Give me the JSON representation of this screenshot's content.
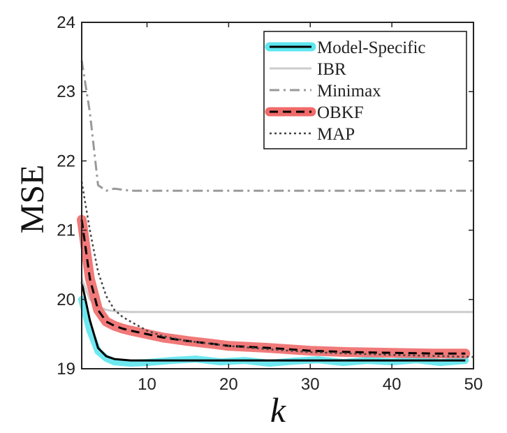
{
  "chart_data": {
    "type": "line",
    "xlabel": "k",
    "ylabel": "MSE",
    "xlim": [
      2,
      50
    ],
    "ylim": [
      19,
      24
    ],
    "xticks": [
      10,
      20,
      30,
      40,
      50
    ],
    "yticks": [
      19,
      20,
      21,
      22,
      23,
      24
    ],
    "x_tick_labels": [
      "10",
      "20",
      "30",
      "40",
      "50"
    ],
    "y_tick_labels": [
      "19",
      "20",
      "21",
      "22",
      "23",
      "24"
    ],
    "grid": false,
    "legend_position": "top-right",
    "series": [
      {
        "name": "Model-Specific",
        "color": "#000000",
        "band_color": "#5ee6ee",
        "x": [
          2,
          3,
          4,
          5,
          6,
          7,
          8,
          10,
          15,
          20,
          25,
          30,
          35,
          40,
          45,
          49
        ],
        "y": [
          20.25,
          19.7,
          19.3,
          19.18,
          19.14,
          19.13,
          19.12,
          19.12,
          19.12,
          19.12,
          19.12,
          19.12,
          19.12,
          19.12,
          19.12,
          19.12
        ],
        "band_x": [
          2,
          3,
          4,
          5,
          6,
          8,
          10,
          13,
          16,
          19,
          22,
          25,
          28,
          31,
          34,
          37,
          40,
          43,
          46,
          49
        ],
        "band_y": [
          20.0,
          19.55,
          19.25,
          19.15,
          19.1,
          19.08,
          19.09,
          19.12,
          19.14,
          19.1,
          19.12,
          19.08,
          19.11,
          19.13,
          19.09,
          19.12,
          19.1,
          19.13,
          19.09,
          19.12
        ]
      },
      {
        "name": "IBR",
        "color": "#cccccc",
        "x": [
          2,
          3,
          4,
          5,
          6,
          8,
          10,
          20,
          30,
          40,
          50
        ],
        "y": [
          20.3,
          20.0,
          19.9,
          19.85,
          19.83,
          19.82,
          19.82,
          19.82,
          19.82,
          19.82,
          19.82
        ]
      },
      {
        "name": "Minimax",
        "color": "#999999",
        "x": [
          2,
          3,
          4,
          5,
          6,
          8,
          10,
          20,
          30,
          40,
          50
        ],
        "y": [
          23.45,
          22.7,
          21.65,
          21.57,
          21.6,
          21.57,
          21.57,
          21.57,
          21.57,
          21.57,
          21.57
        ]
      },
      {
        "name": "OBKF",
        "color": "#000000",
        "band_color": "#f06a6a",
        "x": [
          2,
          3,
          4,
          5,
          6,
          7,
          8,
          10,
          12,
          15,
          18,
          20,
          25,
          30,
          35,
          40,
          45,
          49
        ],
        "y": [
          21.15,
          20.3,
          19.85,
          19.68,
          19.62,
          19.58,
          19.55,
          19.5,
          19.45,
          19.4,
          19.36,
          19.33,
          19.3,
          19.26,
          19.24,
          19.23,
          19.22,
          19.22
        ]
      },
      {
        "name": "MAP",
        "color": "#444444",
        "x": [
          2,
          3,
          4,
          5,
          6,
          7,
          8,
          10,
          12,
          15,
          20,
          25,
          30,
          40,
          50
        ],
        "y": [
          21.7,
          21.0,
          20.4,
          20.05,
          19.85,
          19.75,
          19.68,
          19.55,
          19.47,
          19.4,
          19.33,
          19.28,
          19.24,
          19.2,
          19.17
        ]
      }
    ]
  }
}
